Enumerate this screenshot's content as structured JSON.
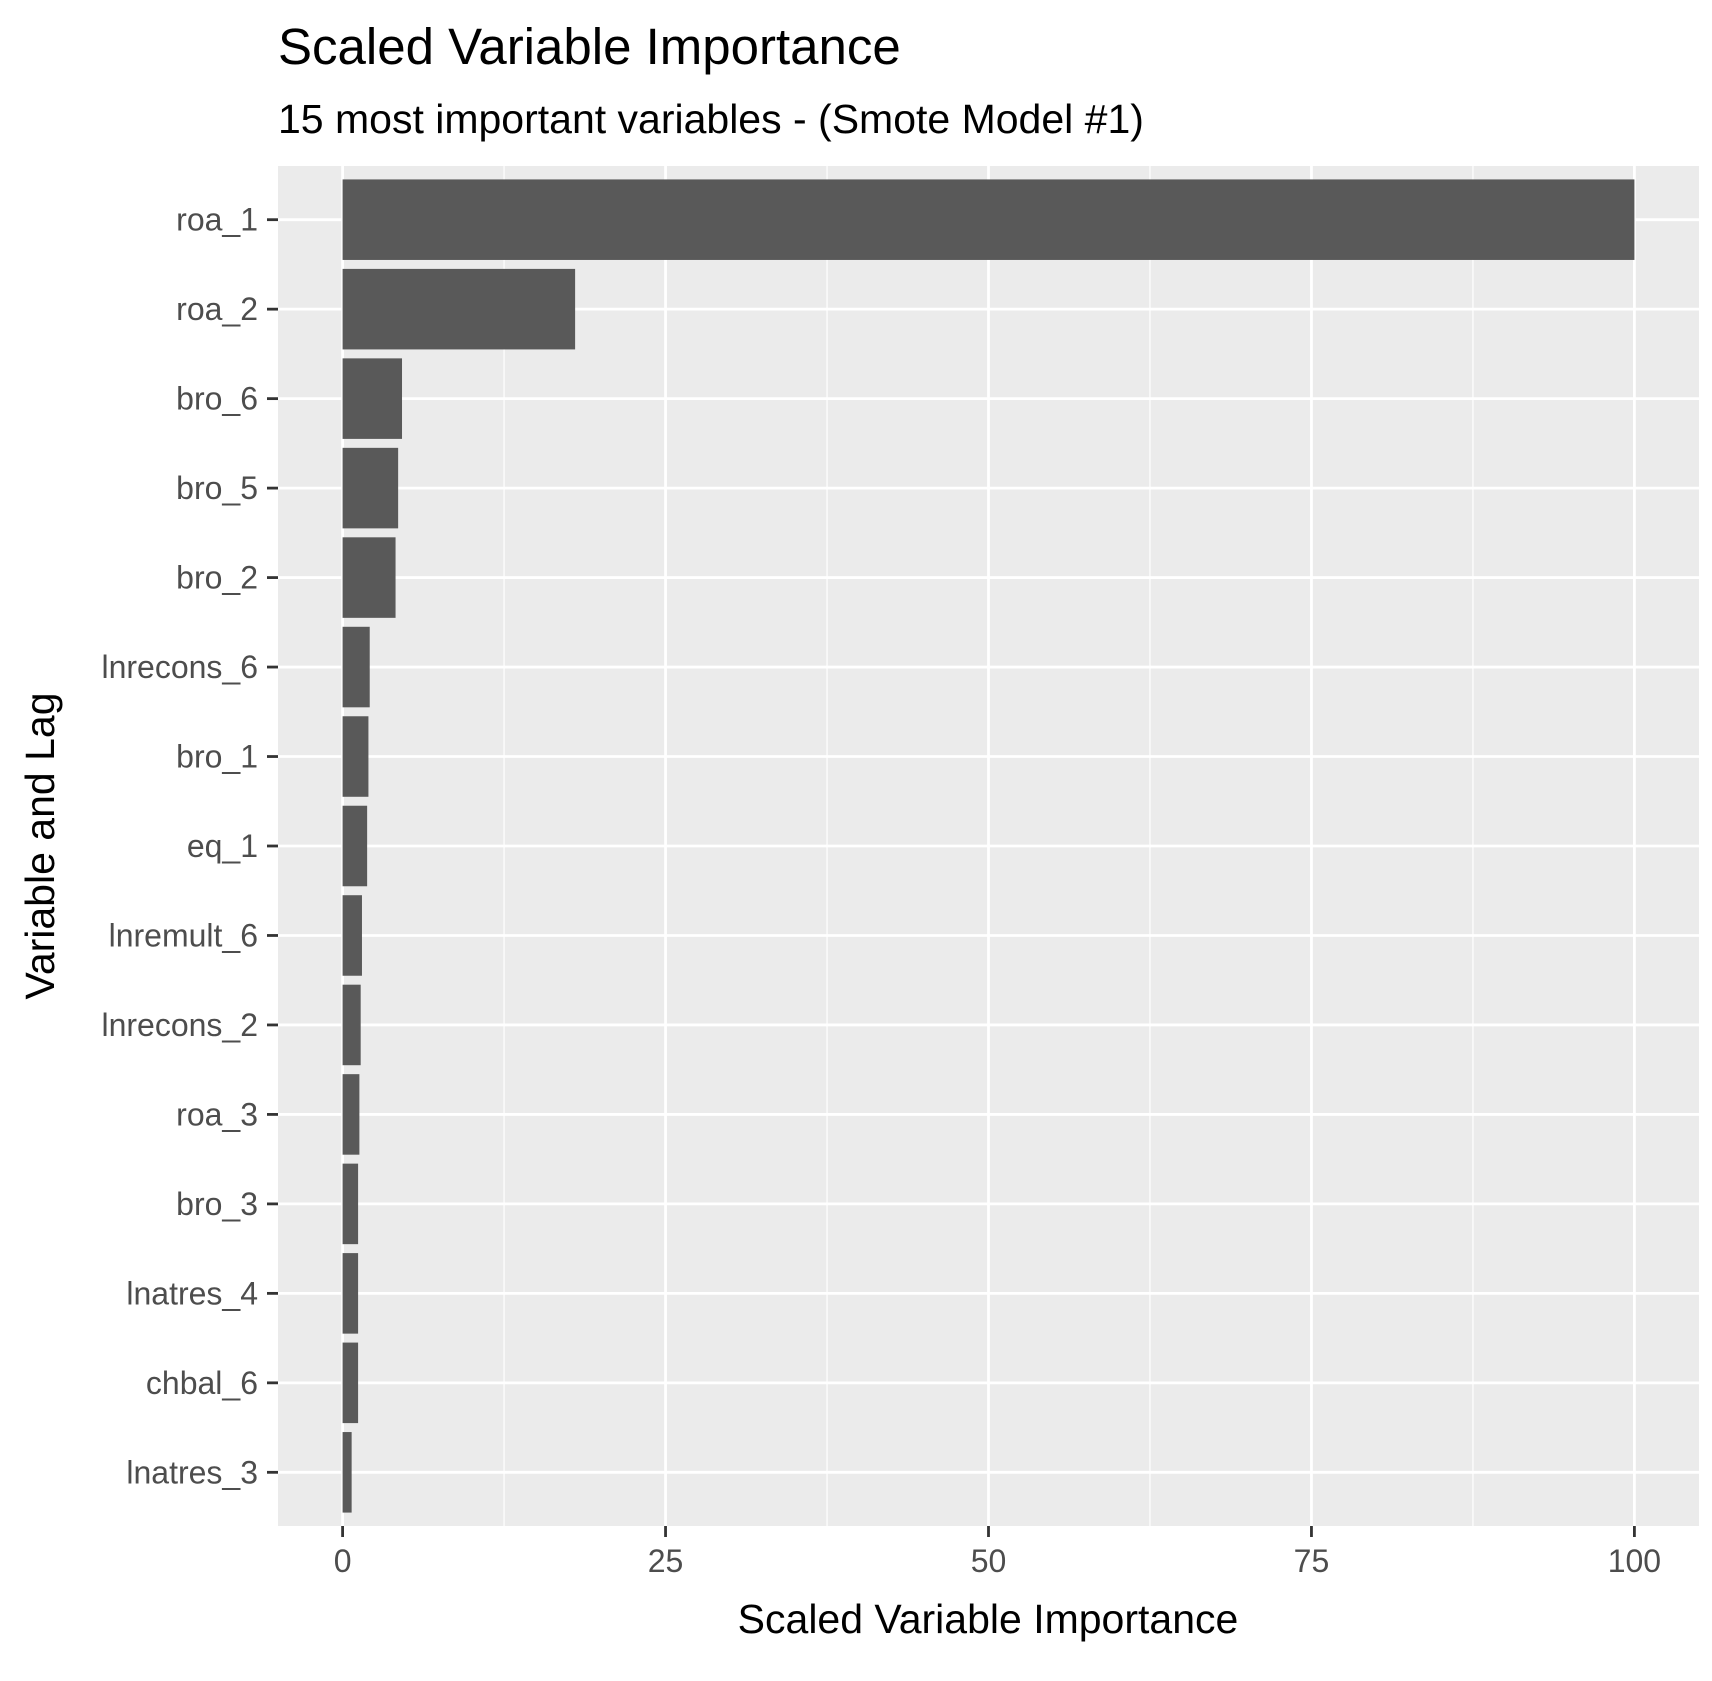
{
  "chart_data": {
    "type": "bar",
    "orientation": "horizontal",
    "title": "Scaled Variable Importance",
    "subtitle": "15 most important variables - (Smote Model #1)",
    "xlabel": "Scaled Variable Importance",
    "ylabel": "Variable and Lag",
    "xlim": [
      -5,
      105
    ],
    "xticks": [
      0,
      25,
      50,
      75,
      100
    ],
    "xtick_labels": [
      "0",
      "25",
      "50",
      "75",
      "100"
    ],
    "grid": true,
    "legend": "none",
    "bar_color": "#595959",
    "panel_background": "#ebebeb",
    "grid_color": "#ffffff",
    "categories": [
      "roa_1",
      "roa_2",
      "bro_6",
      "bro_5",
      "bro_2",
      "lnrecons_6",
      "bro_1",
      "eq_1",
      "lnremult_6",
      "lnrecons_2",
      "roa_3",
      "bro_3",
      "lnatres_4",
      "chbal_6",
      "lnatres_3"
    ],
    "values": [
      100,
      18,
      4.6,
      4.3,
      4.1,
      2.1,
      2.0,
      1.9,
      1.5,
      1.4,
      1.3,
      1.2,
      1.2,
      1.2,
      0.7
    ]
  }
}
